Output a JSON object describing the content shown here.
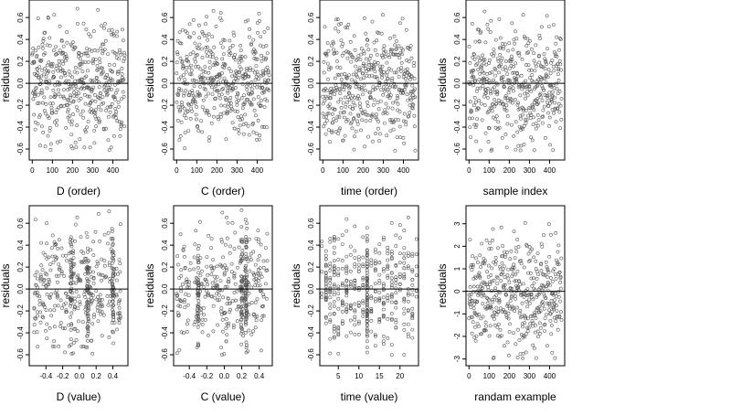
{
  "figure": {
    "point_color": "#555555",
    "point_shape": "open circle",
    "reference_line_color": "#000000"
  },
  "chart_data": [
    {
      "type": "scatter",
      "xlabel": "D (order)",
      "ylabel": "residuals",
      "xlim": [
        -15,
        475
      ],
      "ylim": [
        -0.7,
        0.76
      ],
      "xticks": [
        0,
        100,
        200,
        300,
        400
      ],
      "yticks": [
        -0.6,
        -0.4,
        -0.2,
        0.0,
        0.2,
        0.4,
        0.6
      ],
      "hline": 0,
      "x_kind": "order",
      "n_points": 460,
      "ymin": -0.62,
      "ymax": 0.72
    },
    {
      "type": "scatter",
      "xlabel": "C (order)",
      "ylabel": "residuals",
      "xlim": [
        -15,
        475
      ],
      "ylim": [
        -0.7,
        0.76
      ],
      "xticks": [
        0,
        100,
        200,
        300,
        400
      ],
      "yticks": [
        -0.6,
        -0.4,
        -0.2,
        0.0,
        0.2,
        0.4,
        0.6
      ],
      "hline": 0,
      "x_kind": "order",
      "n_points": 460,
      "ymin": -0.62,
      "ymax": 0.72
    },
    {
      "type": "scatter",
      "xlabel": "time (order)",
      "ylabel": "residuals",
      "xlim": [
        -15,
        475
      ],
      "ylim": [
        -0.7,
        0.76
      ],
      "xticks": [
        0,
        100,
        200,
        300,
        400
      ],
      "yticks": [
        -0.6,
        -0.4,
        -0.2,
        0.0,
        0.2,
        0.4,
        0.6
      ],
      "hline": 0,
      "x_kind": "order",
      "n_points": 460,
      "ymin": -0.62,
      "ymax": 0.72
    },
    {
      "type": "scatter",
      "xlabel": "sample index",
      "ylabel": "residuals",
      "xlim": [
        -15,
        475
      ],
      "ylim": [
        -0.7,
        0.76
      ],
      "xticks": [
        0,
        100,
        200,
        300,
        400
      ],
      "yticks": [
        -0.6,
        -0.4,
        -0.2,
        0.0,
        0.2,
        0.4,
        0.6
      ],
      "hline": 0,
      "x_kind": "order",
      "n_points": 460,
      "ymin": -0.62,
      "ymax": 0.72
    },
    {
      "type": "scatter",
      "xlabel": "D (value)",
      "ylabel": "residuals",
      "xlim": [
        -0.6,
        0.58
      ],
      "ylim": [
        -0.7,
        0.76
      ],
      "xticks": [
        -0.4,
        -0.2,
        0.0,
        0.2,
        0.4
      ],
      "yticks": [
        -0.6,
        -0.4,
        -0.2,
        0.0,
        0.2,
        0.4,
        0.6
      ],
      "hline": 0,
      "x_kind": "value",
      "x_range": [
        -0.55,
        0.5
      ],
      "n_points": 460,
      "x_clusters": [
        -0.1,
        0.1,
        0.4
      ],
      "ymin": -0.62,
      "ymax": 0.72
    },
    {
      "type": "scatter",
      "xlabel": "C (value)",
      "ylabel": "residuals",
      "xlim": [
        -0.58,
        0.55
      ],
      "ylim": [
        -0.7,
        0.76
      ],
      "xticks": [
        -0.4,
        -0.2,
        0.0,
        0.2,
        0.4
      ],
      "yticks": [
        -0.6,
        -0.4,
        -0.2,
        0.0,
        0.2,
        0.4,
        0.6
      ],
      "hline": 0,
      "x_kind": "value",
      "x_range": [
        -0.55,
        0.5
      ],
      "n_points": 460,
      "x_clusters": [
        -0.3,
        0.2,
        0.25
      ],
      "ymin": -0.62,
      "ymax": 0.72
    },
    {
      "type": "scatter",
      "xlabel": "time (value)",
      "ylabel": "residuals",
      "xlim": [
        0.5,
        24.5
      ],
      "ylim": [
        -0.7,
        0.76
      ],
      "xticks": [
        5,
        10,
        15,
        20
      ],
      "yticks": [
        -0.6,
        -0.4,
        -0.2,
        0.0,
        0.2,
        0.4,
        0.6
      ],
      "hline": 0,
      "x_kind": "discrete",
      "x_values_from": 1,
      "x_values_to": 24,
      "n_points": 460,
      "x_clusters": [
        12
      ],
      "ymin": -0.62,
      "ymax": 0.72
    },
    {
      "type": "scatter",
      "xlabel": "randam example",
      "ylabel": "residuals",
      "xlim": [
        -15,
        475
      ],
      "ylim": [
        -3.3,
        3.8
      ],
      "xticks": [
        0,
        100,
        200,
        300,
        400
      ],
      "yticks": [
        -3,
        -2,
        -1,
        0,
        1,
        2,
        3
      ],
      "hline": 0,
      "x_kind": "order",
      "n_points": 460,
      "ymin": -3.0,
      "ymax": 3.5
    }
  ]
}
